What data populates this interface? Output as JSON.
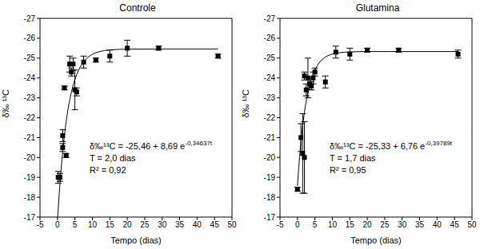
{
  "chart_data": [
    {
      "type": "scatter",
      "title": "Controle",
      "x_label": "Tempo (dias)",
      "y_label": "δ‰ ¹³C",
      "xlim": [
        -5,
        50
      ],
      "xticks": [
        -5,
        0,
        5,
        10,
        15,
        20,
        25,
        30,
        35,
        40,
        45,
        50
      ],
      "ylim": [
        -17,
        -27
      ],
      "yticks": [
        -27,
        -26,
        -25,
        -24,
        -23,
        -22,
        -21,
        -20,
        -19,
        -18,
        -17
      ],
      "grid": false,
      "points": {
        "marker": "square",
        "color": "#000000",
        "x": [
          0.2,
          0.7,
          1.5,
          1.5,
          2.0,
          2.5,
          3.5,
          4.0,
          4.5,
          5.0,
          5.5,
          7.5,
          11,
          15,
          20,
          29,
          46
        ],
        "values": [
          -19.0,
          -19.0,
          -21.1,
          -20.5,
          -23.5,
          -20.1,
          -24.7,
          -24.3,
          -24.7,
          -23.4,
          -23.3,
          -24.8,
          -24.9,
          -25.1,
          -25.5,
          -25.5,
          -25.1
        ],
        "errors": [
          0.3,
          0.2,
          0.3,
          0.2,
          0.1,
          0.1,
          0.4,
          0.2,
          0.3,
          1.0,
          0.2,
          0.3,
          0.1,
          0.3,
          0.4,
          0.1,
          0.1
        ]
      },
      "fit": {
        "type": "line",
        "color": "#000000",
        "line_style": "solid",
        "x": [
          0,
          0.5,
          1,
          1.5,
          2,
          3,
          4,
          5,
          6,
          8,
          10,
          12,
          15,
          20,
          30,
          46
        ],
        "values": [
          -16.77,
          -18.15,
          -19.31,
          -20.29,
          -21.11,
          -22.39,
          -23.29,
          -23.92,
          -24.37,
          -24.92,
          -25.19,
          -25.32,
          -25.41,
          -25.45,
          -25.46,
          -25.46
        ]
      },
      "equation": {
        "text": "δ‰¹³C = -25,46 + 8,69 e",
        "exponent": "-0,34637t"
      },
      "annotations": [
        "T = 2,0 dias",
        "R² = 0,92"
      ]
    },
    {
      "type": "scatter",
      "title": "Glutamina",
      "x_label": "Tempo (dias)",
      "y_label": "δ‰ ¹³C",
      "xlim": [
        -5,
        50
      ],
      "xticks": [
        -5,
        0,
        5,
        10,
        15,
        20,
        25,
        30,
        35,
        40,
        45,
        50
      ],
      "ylim": [
        -17,
        -27
      ],
      "yticks": [
        -27,
        -26,
        -25,
        -24,
        -23,
        -22,
        -21,
        -20,
        -19,
        -18,
        -17
      ],
      "grid": false,
      "points": {
        "marker": "square",
        "color": "#000000",
        "x": [
          0,
          1.0,
          1.5,
          2.0,
          2.0,
          2.5,
          3.0,
          3.5,
          4.0,
          4.5,
          5.0,
          8,
          11,
          15,
          20,
          29,
          46
        ],
        "values": [
          -18.4,
          -21.0,
          -20.2,
          -20.0,
          -24.1,
          -23.4,
          -24.0,
          -23.7,
          -23.6,
          -24.0,
          -24.3,
          -23.8,
          -25.3,
          -25.2,
          -25.4,
          -25.4,
          -25.2
        ],
        "errors": [
          0.1,
          0.7,
          2.0,
          1.8,
          0.2,
          0.3,
          1.0,
          0.3,
          0.2,
          0.3,
          0.2,
          0.3,
          0.3,
          0.3,
          0.1,
          0.1,
          0.2
        ]
      },
      "fit": {
        "type": "line",
        "color": "#000000",
        "line_style": "solid",
        "x": [
          0,
          0.5,
          1,
          1.5,
          2,
          3,
          4,
          5,
          6,
          8,
          10,
          12,
          15,
          20,
          30,
          46
        ],
        "values": [
          -18.57,
          -19.79,
          -20.79,
          -21.6,
          -22.28,
          -23.28,
          -23.95,
          -24.4,
          -24.71,
          -25.05,
          -25.2,
          -25.27,
          -25.31,
          -25.33,
          -25.33,
          -25.33
        ]
      },
      "equation": {
        "text": "δ‰¹³C = -25,33 + 6,76 e",
        "exponent": "-0,39789t"
      },
      "annotations": [
        "T = 1,7 dias",
        "R² = 0,95"
      ]
    }
  ]
}
